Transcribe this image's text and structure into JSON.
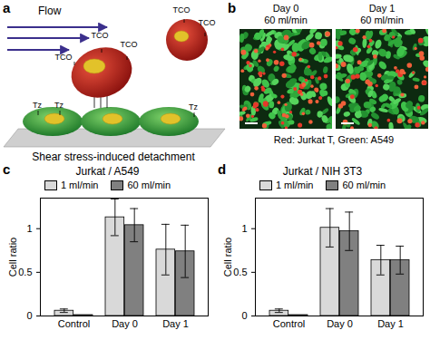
{
  "panels": {
    "a": {
      "label": "a",
      "flow": "Flow",
      "ligand_labels": [
        "TCO",
        "TCO",
        "TCO",
        "TCO",
        "TCO"
      ],
      "surface_labels": [
        "Tz",
        "Tz",
        "Tz"
      ],
      "caption": "Shear stress-induced detachment"
    },
    "b": {
      "label": "b",
      "images": [
        {
          "title": "Day 0",
          "subtitle": "60 ml/min"
        },
        {
          "title": "Day 1",
          "subtitle": "60 ml/min"
        }
      ],
      "caption": "Red: Jurkat T, Green: A549"
    }
  },
  "chart_data": [
    {
      "type": "bar",
      "panel": "c",
      "title": "Jurkat / A549",
      "categories": [
        "Control",
        "Day 0",
        "Day 1"
      ],
      "series": [
        {
          "name": "1 ml/min",
          "color": "#d9d9d9",
          "values": [
            0.06,
            1.13,
            0.76
          ],
          "errors": [
            0.02,
            0.21,
            0.29
          ]
        },
        {
          "name": "60 ml/min",
          "color": "#808080",
          "values": [
            0.01,
            1.04,
            0.74
          ],
          "errors": [
            0,
            0.19,
            0.3
          ]
        }
      ],
      "y_label": "Cell ratio",
      "ylim": [
        0,
        1.35
      ],
      "yticks": [
        0,
        0.5,
        1
      ],
      "legend": "top"
    },
    {
      "type": "bar",
      "panel": "d",
      "title": "Jurkat / NIH 3T3",
      "categories": [
        "Control",
        "Day 0",
        "Day 1"
      ],
      "series": [
        {
          "name": "1 ml/min",
          "color": "#d9d9d9",
          "values": [
            0.06,
            1.01,
            0.64
          ],
          "errors": [
            0.02,
            0.22,
            0.17
          ]
        },
        {
          "name": "60 ml/min",
          "color": "#808080",
          "values": [
            0.01,
            0.97,
            0.64
          ],
          "errors": [
            0,
            0.22,
            0.16
          ]
        }
      ],
      "y_label": "Cell ratio",
      "ylim": [
        0,
        1.35
      ],
      "yticks": [
        0,
        0.5,
        1
      ],
      "legend": "top"
    }
  ]
}
